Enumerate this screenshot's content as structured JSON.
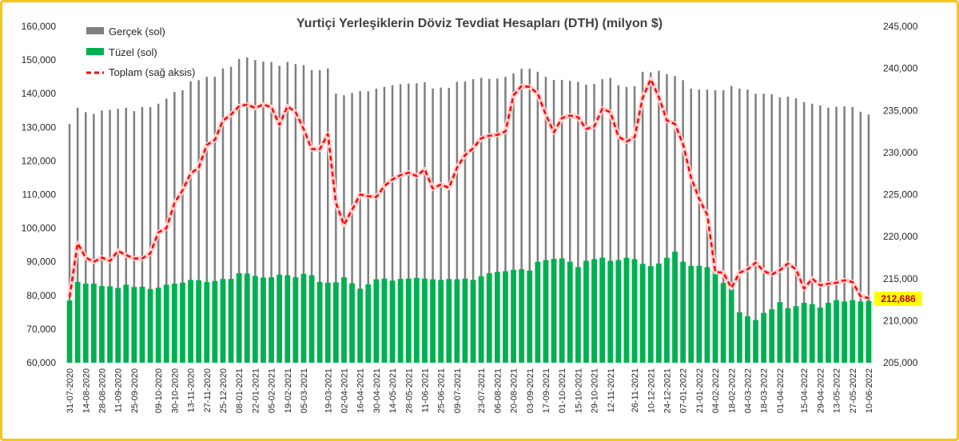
{
  "chart_data": {
    "type": "bar",
    "title": "Yurtiçi Yerleşiklerin Döviz Tevdiat Hesapları (DTH) (milyon $)",
    "legend": {
      "placement": "top-left",
      "items": [
        {
          "label": "Gerçek (sol)",
          "color": "#7f7f7f"
        },
        {
          "label": "Tüzel (sol)",
          "color": "#00b050"
        },
        {
          "label": "Toplam (sağ aksis)",
          "color": "#ff0000"
        }
      ]
    },
    "left_axis": {
      "min": 60000,
      "max": 160000,
      "ticks": [
        "60,000",
        "70,000",
        "80,000",
        "90,000",
        "100,000",
        "110,000",
        "120,000",
        "130,000",
        "140,000",
        "150,000",
        "160,000"
      ]
    },
    "right_axis": {
      "min": 205000,
      "max": 245000,
      "ticks": [
        "205,000",
        "210,000",
        "215,000",
        "220,000",
        "225,000",
        "230,000",
        "235,000",
        "240,000",
        "245,000"
      ]
    },
    "x_tick_labels": [
      "31-07-2020",
      "14-08-2020",
      "28-08-2020",
      "11-09-2020",
      "25-09-2020",
      "09-10-2020",
      "30-10-2020",
      "13-11-2020",
      "27-11-2020",
      "25-12-2020",
      "08-01-2021",
      "22-01-2021",
      "05-02-2021",
      "19-02-2021",
      "05-03-2021",
      "19-03-2021",
      "02-04-2021",
      "16-04-2021",
      "30-04-2021",
      "14-05-2021",
      "28-05-2021",
      "11-06-2021",
      "25-06-2021",
      "09-07-2021",
      "23-07-2021",
      "06-08-2021",
      "20-08-2021",
      "03-09-2021",
      "17-09-2021",
      "01-10-2021",
      "15-10-2021",
      "29-10-2021",
      "12-11-2021",
      "26-11-2021",
      "10-12-2021",
      "24-12-2021",
      "07-01-2022",
      "21-01-2022",
      "04-02-2022",
      "18-02-2022",
      "04-03-2022",
      "18-03-2022",
      "01-04-2022",
      "15-04-2022",
      "29-04-2022",
      "13-05-2022",
      "27-05-2022",
      "10-06-2022"
    ],
    "grid": false,
    "series": [
      {
        "name": "Gerçek (sol)",
        "type": "bar",
        "axis": "left",
        "values": [
          131000,
          135800,
          134500,
          134000,
          135000,
          135200,
          135500,
          135800,
          134800,
          136000,
          136000,
          137000,
          138500,
          140500,
          141000,
          143700,
          144000,
          145000,
          145000,
          147500,
          148000,
          150300,
          150800,
          150000,
          149500,
          149400,
          148300,
          149400,
          148800,
          148500,
          147000,
          147000,
          147500,
          140000,
          139500,
          140200,
          140800,
          140700,
          141500,
          142000,
          142500,
          142800,
          143000,
          143100,
          143400,
          141500,
          141800,
          141700,
          143500,
          143600,
          144300,
          144700,
          144400,
          144500,
          145000,
          146000,
          147400,
          147400,
          146500,
          145000,
          144100,
          144100,
          143800,
          143500,
          142700,
          142900,
          144300,
          144700,
          142500,
          142000,
          142200,
          146500,
          146300,
          146800,
          145800,
          145300,
          144000,
          141500,
          141200,
          141200,
          141000,
          141000,
          142300,
          141500,
          141200,
          140000,
          140000,
          139800,
          138900,
          139100,
          138600,
          137500,
          137000,
          136500,
          135800,
          136100,
          136200,
          136000,
          134600,
          133800
        ]
      },
      {
        "name": "Tüzel (sol)",
        "type": "bar",
        "axis": "left",
        "values": [
          78500,
          84000,
          83500,
          83500,
          82800,
          82700,
          82200,
          83200,
          82500,
          82600,
          81900,
          82300,
          83200,
          83500,
          83800,
          84600,
          84500,
          84000,
          84300,
          84900,
          84900,
          86600,
          86500,
          85800,
          85300,
          85400,
          86200,
          86000,
          85400,
          86400,
          86000,
          84000,
          83800,
          83900,
          85400,
          83600,
          82000,
          83300,
          84800,
          85000,
          84400,
          84900,
          85000,
          85200,
          85000,
          84800,
          84600,
          84900,
          84800,
          85000,
          84600,
          85700,
          86600,
          87000,
          87200,
          87600,
          87800,
          87400,
          90000,
          90500,
          90900,
          91000,
          90000,
          88400,
          90300,
          90800,
          91200,
          90300,
          90500,
          91200,
          90800,
          89400,
          88700,
          89500,
          91200,
          93000,
          90000,
          88800,
          88800,
          88400,
          87200,
          83700,
          82300,
          75000,
          73800,
          72700,
          74800,
          75900,
          78000,
          76200,
          76800,
          77800,
          77400,
          76400,
          77800,
          78600,
          78200,
          78600,
          78200,
          78400
        ]
      },
      {
        "name": "Toplam (sağ aksis)",
        "type": "line",
        "axis": "right",
        "values": [
          212800,
          219200,
          217500,
          217000,
          217500,
          217100,
          218300,
          217800,
          217400,
          217400,
          218000,
          220500,
          221000,
          224000,
          225500,
          227500,
          228200,
          230900,
          231500,
          233800,
          234500,
          235500,
          235700,
          235300,
          235700,
          235400,
          233300,
          235500,
          234800,
          232800,
          230400,
          230400,
          232200,
          224000,
          221400,
          223200,
          225000,
          224800,
          224700,
          226000,
          226800,
          227300,
          227600,
          227200,
          228000,
          225700,
          226200,
          225800,
          228200,
          229700,
          230500,
          231700,
          232000,
          232100,
          232500,
          236800,
          237900,
          237800,
          237000,
          234500,
          232400,
          234100,
          234400,
          234200,
          232800,
          233100,
          235200,
          234800,
          231900,
          231300,
          231800,
          236500,
          238700,
          236600,
          233800,
          233400,
          231000,
          227000,
          224500,
          222600,
          215800,
          215700,
          213900,
          215700,
          216100,
          216900,
          215900,
          215500,
          216000,
          216800,
          216100,
          213800,
          215000,
          214200,
          214400,
          214500,
          214800,
          214600,
          212900,
          212686
        ]
      }
    ],
    "annotation": "212,686"
  }
}
